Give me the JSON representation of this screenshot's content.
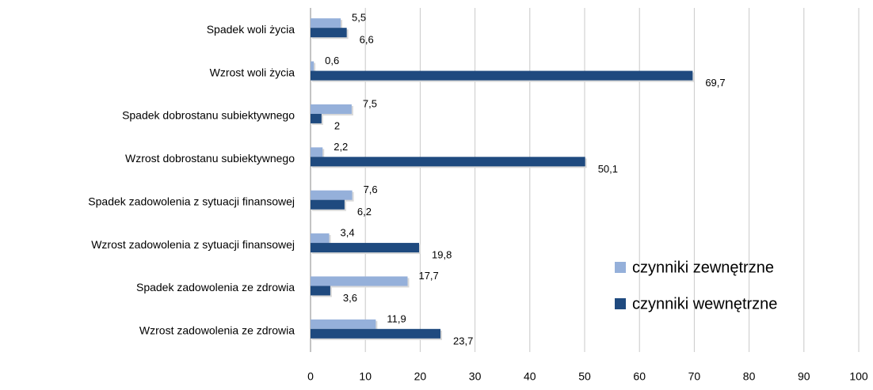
{
  "chart_data": {
    "type": "hbar",
    "categories": [
      "Spadek woli życia",
      "Wzrost woli życia",
      "Spadek dobrostanu subiektywnego",
      "Wzrost dobrostanu subiektywnego",
      "Spadek zadowolenia z sytuacji finansowej",
      "Wzrost zadowolenia z sytuacji finansowej",
      "Spadek zadowolenia ze zdrowia",
      "Wzrost zadowolenia ze zdrowia"
    ],
    "series": [
      {
        "name": "czynniki zewnętrzne",
        "color": "#95b0da",
        "values": [
          5.5,
          0.6,
          7.5,
          2.2,
          7.6,
          3.4,
          17.7,
          11.9
        ],
        "value_labels": [
          "5,5",
          "0,6",
          "7,5",
          "2,2",
          "7,6",
          "3,4",
          "17,7",
          "11,9"
        ]
      },
      {
        "name": "czynniki wewnętrzne",
        "color": "#1f4a7f",
        "values": [
          6.6,
          69.7,
          2,
          50.1,
          6.2,
          19.8,
          3.6,
          23.7
        ],
        "value_labels": [
          "6,6",
          "69,7",
          "2",
          "50,1",
          "6,2",
          "19,8",
          "3,6",
          "23,7"
        ]
      }
    ],
    "xlim": [
      0,
      100
    ],
    "xticks": [
      0,
      10,
      20,
      30,
      40,
      50,
      60,
      70,
      80,
      90,
      100
    ],
    "grid": true,
    "legend": "right"
  }
}
